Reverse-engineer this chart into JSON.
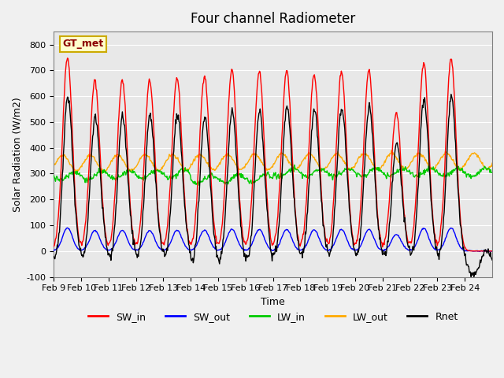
{
  "title": "Four channel Radiometer",
  "xlabel": "Time",
  "ylabel": "Solar Radiation (W/m2)",
  "ylim": [
    -100,
    850
  ],
  "yticks": [
    -100,
    0,
    100,
    200,
    300,
    400,
    500,
    600,
    700,
    800
  ],
  "x_tick_positions": [
    0,
    1,
    2,
    3,
    4,
    5,
    6,
    7,
    8,
    9,
    10,
    11,
    12,
    13,
    14,
    15
  ],
  "x_labels": [
    "Feb 9",
    "Feb 10",
    "Feb 11",
    "Feb 12",
    "Feb 13",
    "Feb 14",
    "Feb 15",
    "Feb 16",
    "Feb 17",
    "Feb 18",
    "Feb 19",
    "Feb 20",
    "Feb 21",
    "Feb 22",
    "Feb 23",
    "Feb 24"
  ],
  "station_label": "GT_met",
  "fig_facecolor": "#f0f0f0",
  "ax_facecolor": "#e8e8e8",
  "colors": {
    "SW_in": "#ff0000",
    "SW_out": "#0000ff",
    "LW_in": "#00cc00",
    "LW_out": "#ffaa00",
    "Rnet": "#000000"
  },
  "legend_labels": [
    "SW_in",
    "SW_out",
    "LW_in",
    "LW_out",
    "Rnet"
  ],
  "sw_in_peaks": [
    750,
    660,
    660,
    660,
    670,
    680,
    700,
    695,
    700,
    685,
    695,
    700,
    535,
    730,
    745,
    0
  ],
  "n_days": 16,
  "pts_per_day": 48
}
